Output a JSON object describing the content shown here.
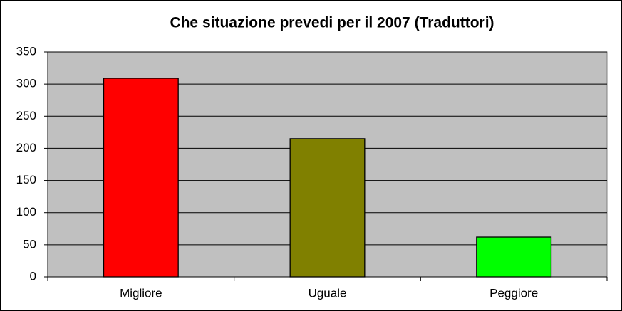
{
  "chart_data": {
    "type": "bar",
    "title": "Che situazione prevedi per il 2007 (Traduttori)",
    "categories": [
      "Migliore",
      "Uguale",
      "Peggiore"
    ],
    "values": [
      309,
      215,
      62
    ],
    "colors": [
      "#ff0000",
      "#808000",
      "#00ff00"
    ],
    "ylim": [
      0,
      350
    ],
    "yticks": [
      0,
      50,
      100,
      150,
      200,
      250,
      300,
      350
    ],
    "grid": true
  }
}
